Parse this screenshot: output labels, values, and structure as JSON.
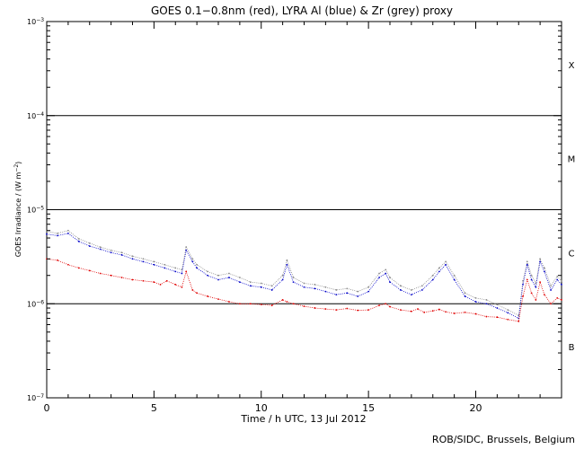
{
  "chart_data": {
    "type": "line",
    "title": "GOES 0.1−0.8nm (red), LYRA Al (blue) & Zr (grey) proxy",
    "xlabel": "Time / h UTC, 13 Jul 2012",
    "ylabel": "GOES Irradiance / (W m",
    "ylabel_sup": "−2",
    "ylabel_close": ")",
    "xlim": [
      0,
      24
    ],
    "ylim": [
      1e-07,
      0.001
    ],
    "yscale": "log",
    "x_ticks": [
      {
        "value": 0,
        "label": "0"
      },
      {
        "value": 5,
        "label": "5"
      },
      {
        "value": 10,
        "label": "10"
      },
      {
        "value": 15,
        "label": "15"
      },
      {
        "value": 20,
        "label": "20"
      }
    ],
    "y_ticks": [
      {
        "exp": -7,
        "base": "10",
        "sup": "−7"
      },
      {
        "exp": -6,
        "base": "10",
        "sup": "−6"
      },
      {
        "exp": -5,
        "base": "10",
        "sup": "−5"
      },
      {
        "exp": -4,
        "base": "10",
        "sup": "−4"
      },
      {
        "exp": -3,
        "base": "10",
        "sup": "−3"
      }
    ],
    "flare_class_lines": [
      1e-06,
      1e-05,
      0.0001
    ],
    "flare_classes": [
      {
        "label": "X",
        "center": 0.00035
      },
      {
        "label": "M",
        "center": 3.5e-05
      },
      {
        "label": "C",
        "center": 3.5e-06
      },
      {
        "label": "B",
        "center": 3.5e-07
      }
    ],
    "grid": false,
    "legend": "in title",
    "series": [
      {
        "name": "GOES 0.1−0.8nm",
        "color": "#e00000",
        "x": [
          0,
          0.5,
          1,
          1.5,
          2,
          2.5,
          3,
          3.5,
          4,
          4.5,
          5,
          5.3,
          5.6,
          6,
          6.3,
          6.5,
          6.8,
          7,
          7.5,
          8,
          8.5,
          9,
          9.5,
          10,
          10.5,
          11,
          11.2,
          11.5,
          12,
          12.5,
          13,
          13.5,
          14,
          14.5,
          15,
          15.5,
          15.8,
          16,
          16.5,
          17,
          17.3,
          17.6,
          18,
          18.3,
          18.6,
          19,
          19.5,
          20,
          20.5,
          21,
          21.5,
          22,
          22.2,
          22.4,
          22.6,
          22.8,
          23,
          23.2,
          23.5,
          23.8,
          24
        ],
        "y": [
          3e-06,
          2.9e-06,
          2.6e-06,
          2.4e-06,
          2.25e-06,
          2.1e-06,
          2e-06,
          1.9e-06,
          1.8e-06,
          1.75e-06,
          1.7e-06,
          1.6e-06,
          1.75e-06,
          1.6e-06,
          1.5e-06,
          2.2e-06,
          1.4e-06,
          1.3e-06,
          1.2e-06,
          1.12e-06,
          1.05e-06,
          1e-06,
          1e-06,
          9.8e-07,
          9.6e-07,
          1.1e-06,
          1.05e-06,
          1e-06,
          9.4e-07,
          9e-07,
          8.8e-07,
          8.6e-07,
          8.9e-07,
          8.5e-07,
          8.6e-07,
          9.6e-07,
          1e-06,
          9.3e-07,
          8.6e-07,
          8.3e-07,
          8.8e-07,
          8.1e-07,
          8.4e-07,
          8.7e-07,
          8.2e-07,
          7.9e-07,
          8.1e-07,
          7.8e-07,
          7.3e-07,
          7.2e-07,
          6.8e-07,
          6.5e-07,
          1.2e-06,
          1.8e-06,
          1.3e-06,
          1.1e-06,
          1.7e-06,
          1.25e-06,
          1e-06,
          1.15e-06,
          1.1e-06
        ]
      },
      {
        "name": "LYRA Al",
        "color": "#0000c8",
        "x": [
          0,
          0.5,
          1,
          1.5,
          2,
          2.5,
          3,
          3.5,
          4,
          4.5,
          5,
          5.5,
          6,
          6.3,
          6.5,
          6.8,
          7,
          7.5,
          8,
          8.5,
          9,
          9.5,
          10,
          10.5,
          11,
          11.2,
          11.5,
          12,
          12.5,
          13,
          13.5,
          14,
          14.5,
          15,
          15.5,
          15.8,
          16,
          16.5,
          17,
          17.5,
          18,
          18.3,
          18.6,
          19,
          19.5,
          20,
          20.5,
          21,
          21.5,
          22,
          22.2,
          22.4,
          22.6,
          22.8,
          23,
          23.2,
          23.5,
          23.8,
          24
        ],
        "y": [
          5.5e-06,
          5.3e-06,
          5.6e-06,
          4.6e-06,
          4.1e-06,
          3.8e-06,
          3.5e-06,
          3.3e-06,
          3e-06,
          2.8e-06,
          2.6e-06,
          2.4e-06,
          2.2e-06,
          2.1e-06,
          3.7e-06,
          2.8e-06,
          2.4e-06,
          2e-06,
          1.8e-06,
          1.9e-06,
          1.7e-06,
          1.55e-06,
          1.5e-06,
          1.4e-06,
          1.8e-06,
          2.6e-06,
          1.7e-06,
          1.5e-06,
          1.45e-06,
          1.35e-06,
          1.25e-06,
          1.3e-06,
          1.2e-06,
          1.35e-06,
          1.9e-06,
          2.1e-06,
          1.7e-06,
          1.4e-06,
          1.25e-06,
          1.4e-06,
          1.8e-06,
          2.2e-06,
          2.6e-06,
          1.8e-06,
          1.2e-06,
          1.05e-06,
          1e-06,
          9e-07,
          8e-07,
          7e-07,
          1.6e-06,
          2.6e-06,
          1.8e-06,
          1.5e-06,
          2.8e-06,
          2.2e-06,
          1.4e-06,
          1.8e-06,
          1.6e-06
        ]
      },
      {
        "name": "Zr",
        "color": "#8a8a8a",
        "x": [
          0,
          0.5,
          1,
          1.5,
          2,
          2.5,
          3,
          3.5,
          4,
          4.5,
          5,
          5.5,
          6,
          6.3,
          6.5,
          6.8,
          7,
          7.5,
          8,
          8.5,
          9,
          9.5,
          10,
          10.5,
          11,
          11.2,
          11.5,
          12,
          12.5,
          13,
          13.5,
          14,
          14.5,
          15,
          15.5,
          15.8,
          16,
          16.5,
          17,
          17.5,
          18,
          18.3,
          18.6,
          19,
          19.5,
          20,
          20.5,
          21,
          21.5,
          22,
          22.2,
          22.4,
          22.6,
          22.8,
          23,
          23.2,
          23.5,
          23.8,
          24
        ],
        "y": [
          5.9e-06,
          5.6e-06,
          6e-06,
          4.9e-06,
          4.4e-06,
          4e-06,
          3.7e-06,
          3.5e-06,
          3.2e-06,
          3e-06,
          2.8e-06,
          2.6e-06,
          2.4e-06,
          2.3e-06,
          4e-06,
          3e-06,
          2.6e-06,
          2.2e-06,
          2e-06,
          2.1e-06,
          1.9e-06,
          1.7e-06,
          1.65e-06,
          1.55e-06,
          2e-06,
          2.9e-06,
          1.9e-06,
          1.65e-06,
          1.6e-06,
          1.5e-06,
          1.4e-06,
          1.45e-06,
          1.35e-06,
          1.5e-06,
          2.1e-06,
          2.3e-06,
          1.9e-06,
          1.55e-06,
          1.4e-06,
          1.55e-06,
          2e-06,
          2.4e-06,
          2.8e-06,
          2e-06,
          1.3e-06,
          1.15e-06,
          1.1e-06,
          9.8e-07,
          8.6e-07,
          7.5e-07,
          1.75e-06,
          2.8e-06,
          2e-06,
          1.65e-06,
          3e-06,
          2.4e-06,
          1.55e-06,
          1.95e-06,
          1.75e-06
        ]
      }
    ]
  },
  "footer": "ROB/SIDC, Brussels, Belgium"
}
